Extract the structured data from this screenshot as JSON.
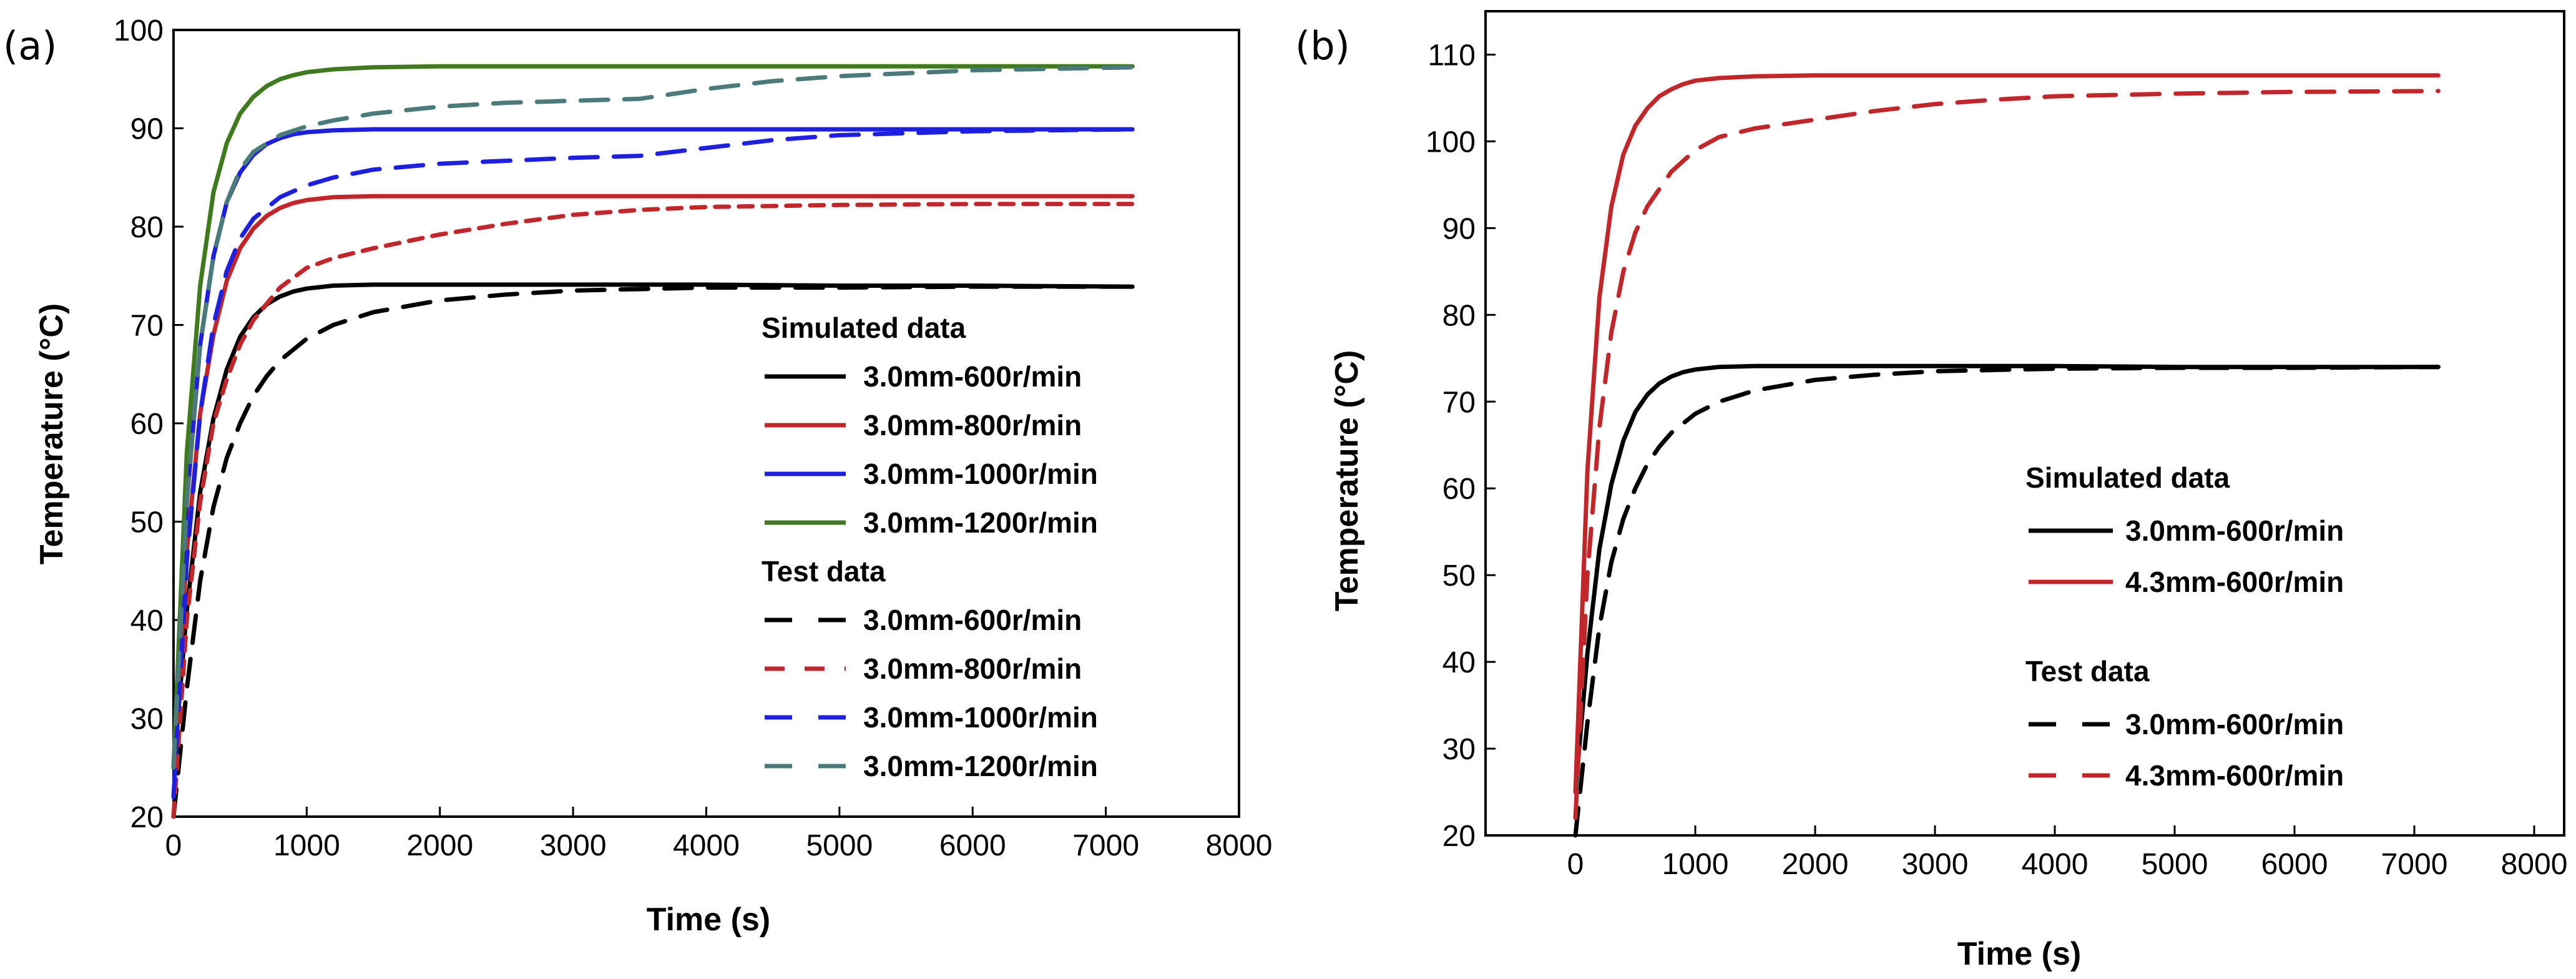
{
  "chart_data": [
    {
      "panel": "(a)",
      "type": "line",
      "xlabel": "Time (s)",
      "ylabel": "Temperature (°C)",
      "xlim": [
        0,
        8000
      ],
      "ylim": [
        20,
        100
      ],
      "xticks": [
        0,
        1000,
        2000,
        3000,
        4000,
        5000,
        6000,
        7000,
        8000
      ],
      "yticks": [
        20,
        30,
        40,
        50,
        60,
        70,
        80,
        90,
        100
      ],
      "legend_groups": [
        {
          "title": "Simulated data",
          "series": [
            0,
            1,
            2,
            3
          ]
        },
        {
          "title": "Test data",
          "series": [
            4,
            5,
            6,
            7
          ]
        }
      ],
      "series": [
        {
          "name": "3.0mm-600r/min",
          "group": "Simulated data",
          "color": "#000000",
          "dash": "solid",
          "x": [
            0,
            100,
            200,
            300,
            400,
            500,
            600,
            700,
            800,
            900,
            1000,
            1200,
            1500,
            2000,
            3000,
            4000,
            5000,
            6000,
            7200
          ],
          "y": [
            25,
            41,
            53,
            60.5,
            65.5,
            68.8,
            70.8,
            72.1,
            72.9,
            73.4,
            73.7,
            74,
            74.1,
            74.1,
            74.1,
            74.1,
            74,
            74,
            73.9
          ]
        },
        {
          "name": "3.0mm-800r/min",
          "group": "Simulated data",
          "color": "#c0262a",
          "dash": "solid",
          "x": [
            0,
            100,
            200,
            300,
            400,
            500,
            600,
            700,
            800,
            900,
            1000,
            1200,
            1500,
            2000,
            3000,
            4000,
            5000,
            6000,
            7200
          ],
          "y": [
            25,
            47,
            61,
            69,
            74.5,
            77.8,
            79.8,
            81.1,
            81.9,
            82.4,
            82.7,
            83,
            83.1,
            83.1,
            83.1,
            83.1,
            83.1,
            83.1,
            83.1
          ]
        },
        {
          "name": "3.0mm-1000r/min",
          "group": "Simulated data",
          "color": "#1f1fe0",
          "dash": "solid",
          "x": [
            0,
            100,
            200,
            300,
            400,
            500,
            600,
            700,
            800,
            900,
            1000,
            1200,
            1500,
            2000,
            3000,
            4000,
            5000,
            6000,
            7200
          ],
          "y": [
            25,
            52,
            68,
            77,
            82.5,
            85.5,
            87.3,
            88.4,
            89,
            89.4,
            89.6,
            89.8,
            89.9,
            89.9,
            89.9,
            89.9,
            89.9,
            89.9,
            89.9
          ]
        },
        {
          "name": "3.0mm-1200r/min",
          "group": "Simulated data",
          "color": "#3f7a1f",
          "dash": "solid",
          "x": [
            0,
            100,
            200,
            300,
            400,
            500,
            600,
            700,
            800,
            900,
            1000,
            1200,
            1500,
            2000,
            3000,
            4000,
            5000,
            6000,
            7200
          ],
          "y": [
            25,
            57,
            74,
            83.5,
            88.5,
            91.5,
            93.2,
            94.3,
            95,
            95.4,
            95.7,
            96,
            96.2,
            96.3,
            96.3,
            96.3,
            96.3,
            96.3,
            96.3
          ]
        },
        {
          "name": "3.0mm-600r/min",
          "group": "Test data",
          "color": "#000000",
          "dash": "long",
          "x": [
            0,
            100,
            200,
            300,
            400,
            500,
            600,
            700,
            800,
            1000,
            1200,
            1500,
            2000,
            2500,
            3000,
            4000,
            5000,
            6000,
            7200
          ],
          "y": [
            20,
            33,
            44,
            51.5,
            56.5,
            60,
            62.8,
            64.8,
            66.4,
            68.6,
            70,
            71.3,
            72.5,
            73.1,
            73.5,
            73.8,
            73.8,
            73.9,
            73.9
          ]
        },
        {
          "name": "3.0mm-800r/min",
          "group": "Test data",
          "color": "#c0262a",
          "dash": "short",
          "x": [
            0,
            100,
            200,
            300,
            400,
            500,
            600,
            800,
            1000,
            1200,
            1500,
            2000,
            2500,
            3000,
            3500,
            4000,
            5000,
            6000,
            7200
          ],
          "y": [
            20,
            40,
            52,
            60,
            64.5,
            68,
            70.5,
            73.8,
            75.8,
            76.8,
            77.8,
            79.2,
            80.3,
            81.2,
            81.7,
            82,
            82.2,
            82.3,
            82.3
          ]
        },
        {
          "name": "3.0mm-1000r/min",
          "group": "Test data",
          "color": "#1f1fe0",
          "dash": "long",
          "x": [
            0,
            100,
            200,
            300,
            400,
            500,
            600,
            800,
            1000,
            1200,
            1500,
            2000,
            2500,
            3000,
            3500,
            4000,
            4500,
            5000,
            6000,
            7200
          ],
          "y": [
            22,
            46,
            61,
            70,
            75.5,
            78.8,
            80.8,
            83,
            84.2,
            85,
            85.8,
            86.4,
            86.7,
            87,
            87.2,
            88,
            88.8,
            89.3,
            89.7,
            89.9
          ]
        },
        {
          "name": "3.0mm-1200r/min",
          "group": "Test data",
          "color": "#4a7a7a",
          "dash": "long",
          "x": [
            0,
            100,
            200,
            300,
            400,
            500,
            600,
            800,
            1000,
            1200,
            1500,
            2000,
            2500,
            3000,
            3500,
            4000,
            4500,
            5000,
            6000,
            7200
          ],
          "y": [
            25,
            52,
            68,
            77,
            82.5,
            85.8,
            87.6,
            89.3,
            90.2,
            90.8,
            91.5,
            92.2,
            92.6,
            92.8,
            93,
            94,
            94.8,
            95.3,
            95.9,
            96.2
          ]
        }
      ]
    },
    {
      "panel": "(b)",
      "type": "line",
      "xlabel": "Time (s)",
      "ylabel": "Temperature (°C)",
      "xlim": [
        -750,
        8250
      ],
      "ylim": [
        20,
        115
      ],
      "xticks": [
        0,
        1000,
        2000,
        3000,
        4000,
        5000,
        6000,
        7000,
        8000
      ],
      "yticks": [
        20,
        30,
        40,
        50,
        60,
        70,
        80,
        90,
        100,
        110
      ],
      "legend_groups": [
        {
          "title": "Simulated data",
          "series": [
            0,
            1
          ]
        },
        {
          "title": "Test data",
          "series": [
            2,
            3
          ]
        }
      ],
      "series": [
        {
          "name": "3.0mm-600r/min",
          "group": "Simulated data",
          "color": "#000000",
          "dash": "solid",
          "x": [
            0,
            100,
            200,
            300,
            400,
            500,
            600,
            700,
            800,
            900,
            1000,
            1200,
            1500,
            2000,
            3000,
            4000,
            5000,
            6000,
            7200
          ],
          "y": [
            25,
            41,
            53,
            60.5,
            65.5,
            68.8,
            70.8,
            72.1,
            72.9,
            73.4,
            73.7,
            74,
            74.1,
            74.1,
            74.1,
            74.1,
            74,
            74,
            74
          ]
        },
        {
          "name": "4.3mm-600r/min",
          "group": "Simulated data",
          "color": "#c0262a",
          "dash": "solid",
          "x": [
            0,
            100,
            200,
            300,
            400,
            500,
            600,
            700,
            800,
            900,
            1000,
            1200,
            1500,
            2000,
            3000,
            4000,
            5000,
            6000,
            7200
          ],
          "y": [
            25,
            62,
            82,
            92.5,
            98.5,
            101.8,
            103.8,
            105.2,
            106,
            106.6,
            107,
            107.3,
            107.5,
            107.6,
            107.6,
            107.6,
            107.6,
            107.6,
            107.6
          ]
        },
        {
          "name": "3.0mm-600r/min",
          "group": "Test data",
          "color": "#000000",
          "dash": "long",
          "x": [
            0,
            100,
            200,
            300,
            400,
            500,
            600,
            700,
            800,
            1000,
            1200,
            1500,
            2000,
            2500,
            3000,
            4000,
            5000,
            6000,
            7200
          ],
          "y": [
            20,
            33,
            44,
            51.5,
            56.5,
            60,
            62.8,
            64.8,
            66.4,
            68.6,
            70,
            71.3,
            72.5,
            73.1,
            73.5,
            73.8,
            73.9,
            73.9,
            74
          ]
        },
        {
          "name": "4.3mm-600r/min",
          "group": "Test data",
          "color": "#c0262a",
          "dash": "long",
          "x": [
            0,
            100,
            200,
            300,
            400,
            500,
            600,
            800,
            1000,
            1200,
            1500,
            2000,
            2500,
            3000,
            3500,
            4000,
            5000,
            6000,
            7200
          ],
          "y": [
            22,
            50,
            67,
            78,
            85,
            89.5,
            92.5,
            96.5,
            99,
            100.5,
            101.5,
            102.5,
            103.5,
            104.3,
            104.8,
            105.2,
            105.5,
            105.7,
            105.8
          ]
        }
      ]
    }
  ]
}
